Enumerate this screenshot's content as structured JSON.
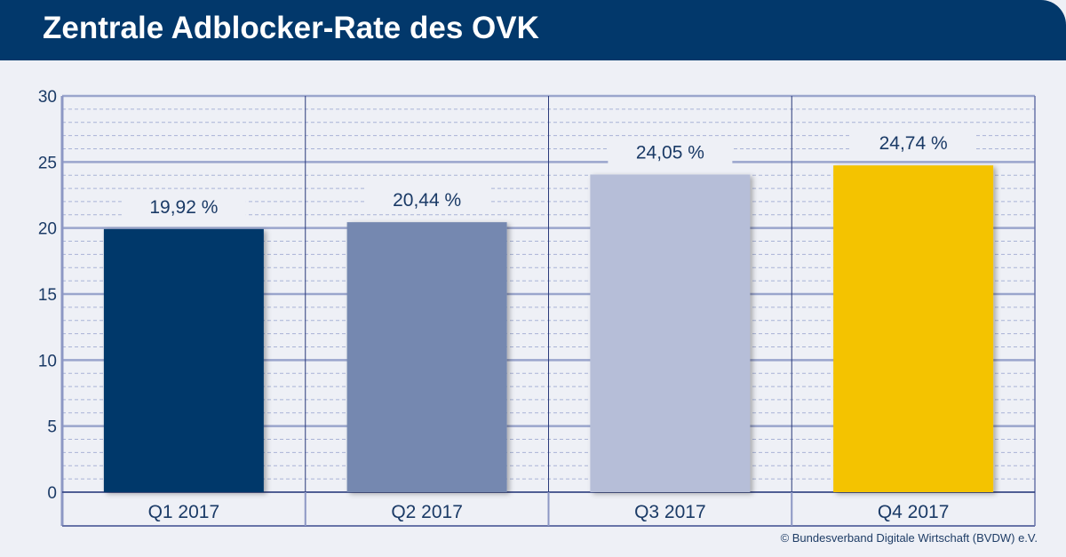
{
  "header": {
    "title": "Zentrale Adblocker-Rate des OVK"
  },
  "footer": {
    "copyright": "© Bundesverband Digitale Wirtschaft (BVDW) e.V."
  },
  "chart_data": {
    "type": "bar",
    "title": "Zentrale Adblocker-Rate des OVK",
    "categories": [
      "Q1 2017",
      "Q2 2017",
      "Q3 2017",
      "Q4 2017"
    ],
    "values": [
      19.92,
      20.44,
      24.05,
      24.74
    ],
    "data_labels": [
      "19,92 %",
      "20,44 %",
      "24,05 %",
      "24,74 %"
    ],
    "colors": [
      "#02386b",
      "#7488b0",
      "#b6bed8",
      "#f4c300"
    ],
    "ylim": [
      0,
      30
    ],
    "yticks": [
      0,
      5,
      10,
      15,
      20,
      25,
      30
    ],
    "grid": true,
    "xlabel": "",
    "ylabel": ""
  }
}
